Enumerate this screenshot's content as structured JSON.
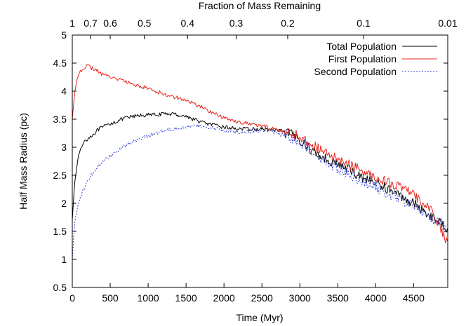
{
  "chart_data": {
    "type": "line",
    "xlabel": "Time (Myr)",
    "ylabel": "Half Mass Radius (pc)",
    "top_xlabel": "Fraction of Mass Remaining",
    "xlim": [
      0,
      4950
    ],
    "ylim": [
      0.5,
      5
    ],
    "x_ticks": [
      0,
      500,
      1000,
      1500,
      2000,
      2500,
      3000,
      3500,
      4000,
      4500
    ],
    "x_tick_labels": [
      "0",
      "500",
      "1000",
      "1500",
      "2000",
      "2500",
      "3000",
      "3500",
      "4000",
      "4500"
    ],
    "y_ticks": [
      0.5,
      1,
      1.5,
      2,
      2.5,
      3,
      3.5,
      4,
      4.5,
      5
    ],
    "y_tick_labels": [
      "0.5",
      "1",
      "1.5",
      "2",
      "2.5",
      "3",
      "3.5",
      "4",
      "4.5",
      "5"
    ],
    "top_ticks": [
      {
        "label": "1",
        "x": 0
      },
      {
        "label": "0.7",
        "x": 240
      },
      {
        "label": "0.6",
        "x": 500
      },
      {
        "label": "0.5",
        "x": 950
      },
      {
        "label": "0.4",
        "x": 1520
      },
      {
        "label": "0.3",
        "x": 2160
      },
      {
        "label": "0.2",
        "x": 2840
      },
      {
        "label": "0.1",
        "x": 3840
      },
      {
        "label": "0.01",
        "x": 4950
      }
    ],
    "legend_position": "top-right",
    "series": [
      {
        "name": "Total Population",
        "color": "#000000",
        "dash": "solid",
        "x": [
          0,
          30,
          80,
          150,
          250,
          350,
          500,
          700,
          900,
          1100,
          1300,
          1500,
          1700,
          1900,
          2100,
          2300,
          2500,
          2700,
          2900,
          3000,
          3100,
          3300,
          3500,
          3700,
          3900,
          4100,
          4300,
          4500,
          4700,
          4950
        ],
        "y": [
          1.7,
          2.35,
          2.85,
          3.1,
          3.2,
          3.32,
          3.42,
          3.52,
          3.57,
          3.58,
          3.6,
          3.55,
          3.45,
          3.38,
          3.34,
          3.32,
          3.32,
          3.3,
          3.22,
          3.15,
          3.0,
          2.82,
          2.7,
          2.55,
          2.42,
          2.3,
          2.15,
          2.0,
          1.8,
          1.55
        ]
      },
      {
        "name": "First Population",
        "color": "#e8241e",
        "dash": "solid",
        "x": [
          0,
          30,
          60,
          100,
          150,
          200,
          300,
          400,
          600,
          800,
          1000,
          1200,
          1400,
          1600,
          1800,
          2000,
          2200,
          2400,
          2600,
          2800,
          3000,
          3100,
          3300,
          3500,
          3700,
          3900,
          4100,
          4300,
          4500,
          4700,
          4950
        ],
        "y": [
          3.5,
          3.95,
          4.2,
          4.35,
          4.42,
          4.45,
          4.38,
          4.3,
          4.22,
          4.12,
          4.05,
          3.95,
          3.88,
          3.78,
          3.65,
          3.52,
          3.45,
          3.4,
          3.35,
          3.28,
          3.2,
          3.1,
          2.92,
          2.78,
          2.66,
          2.52,
          2.42,
          2.3,
          2.15,
          1.95,
          1.3
        ]
      },
      {
        "name": "Second Population",
        "color": "#2f3fd9",
        "dash": "dotted",
        "x": [
          0,
          30,
          80,
          150,
          250,
          400,
          600,
          800,
          1000,
          1200,
          1400,
          1600,
          1800,
          2000,
          2200,
          2400,
          2600,
          2800,
          3000,
          3100,
          3300,
          3500,
          3700,
          3900,
          4100,
          4300,
          4500,
          4700,
          4950
        ],
        "y": [
          1.0,
          1.65,
          2.0,
          2.25,
          2.5,
          2.75,
          2.95,
          3.1,
          3.2,
          3.3,
          3.35,
          3.38,
          3.35,
          3.3,
          3.27,
          3.28,
          3.3,
          3.2,
          3.1,
          3.0,
          2.78,
          2.62,
          2.48,
          2.35,
          2.2,
          2.08,
          1.95,
          1.75,
          1.6
        ]
      }
    ]
  }
}
